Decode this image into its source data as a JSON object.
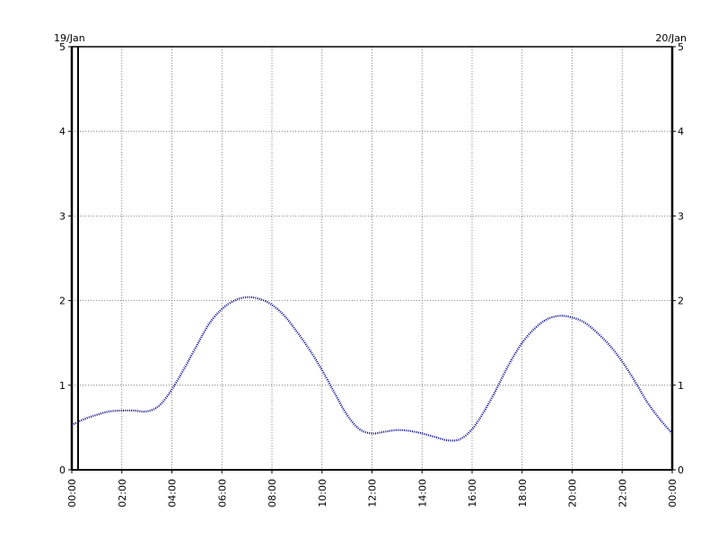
{
  "chart_data": {
    "type": "line",
    "title": "",
    "xlabel": "",
    "ylabel": "",
    "date_labels": {
      "left": "19/Jan",
      "right": "20/Jan"
    },
    "x_tick_labels": [
      "00:00",
      "02:00",
      "04:00",
      "06:00",
      "08:00",
      "10:00",
      "12:00",
      "14:00",
      "16:00",
      "18:00",
      "20:00",
      "22:00",
      "00:00"
    ],
    "y_tick_labels": [
      "0",
      "1",
      "2",
      "3",
      "4",
      "5"
    ],
    "xlim": [
      "00:00",
      "00:00"
    ],
    "ylim": [
      0,
      5
    ],
    "grid": true,
    "marker_line_x": "00:15",
    "series": [
      {
        "color": "#00008b",
        "style": "dotted",
        "x": [
          "00:00",
          "00:30",
          "01:00",
          "01:30",
          "02:00",
          "02:30",
          "03:00",
          "03:30",
          "04:00",
          "04:30",
          "05:00",
          "05:30",
          "06:00",
          "06:30",
          "07:00",
          "07:30",
          "08:00",
          "08:30",
          "09:00",
          "09:30",
          "10:00",
          "10:30",
          "11:00",
          "11:30",
          "12:00",
          "12:30",
          "13:00",
          "13:30",
          "14:00",
          "14:30",
          "15:00",
          "15:30",
          "16:00",
          "16:30",
          "17:00",
          "17:30",
          "18:00",
          "18:30",
          "19:00",
          "19:30",
          "20:00",
          "20:30",
          "21:00",
          "21:30",
          "22:00",
          "22:30",
          "23:00",
          "23:30",
          "24:00"
        ],
        "values": [
          0.53,
          0.6,
          0.65,
          0.69,
          0.7,
          0.7,
          0.69,
          0.76,
          0.95,
          1.2,
          1.47,
          1.73,
          1.9,
          2.0,
          2.04,
          2.02,
          1.95,
          1.82,
          1.63,
          1.42,
          1.18,
          0.91,
          0.65,
          0.48,
          0.43,
          0.45,
          0.47,
          0.46,
          0.43,
          0.39,
          0.35,
          0.36,
          0.48,
          0.7,
          0.97,
          1.26,
          1.5,
          1.67,
          1.78,
          1.82,
          1.8,
          1.74,
          1.62,
          1.47,
          1.28,
          1.05,
          0.8,
          0.6,
          0.43
        ]
      }
    ]
  }
}
